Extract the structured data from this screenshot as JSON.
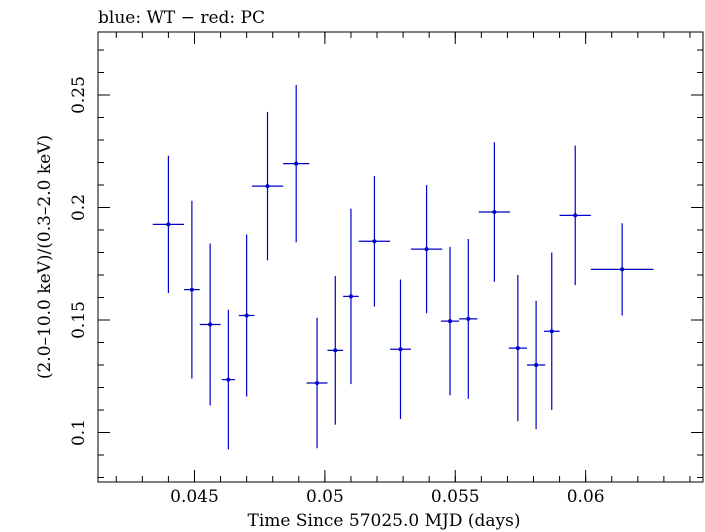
{
  "chart_data": {
    "type": "scatter",
    "title": "blue: WT − red: PC",
    "xlabel": "Time Since 57025.0 MJD (days)",
    "ylabel": "(2.0–10.0 keV)/(0.3–2.0 keV)",
    "xlim": [
      0.0413,
      0.0645
    ],
    "ylim": [
      0.078,
      0.278
    ],
    "x_ticks": [
      0.045,
      0.05,
      0.055,
      0.06
    ],
    "x_tick_labels": [
      "0.045",
      "0.05",
      "0.055",
      "0.06"
    ],
    "y_ticks": [
      0.1,
      0.15,
      0.2,
      0.25
    ],
    "y_tick_labels": [
      "0.1",
      "0.15",
      "0.2",
      "0.25"
    ],
    "grid": false,
    "colors": {
      "WT": "#0000cc",
      "axes": "#000000"
    },
    "series": [
      {
        "name": "WT",
        "points": [
          {
            "x": 0.044,
            "xerr": 0.0006,
            "y": 0.1925,
            "yerr_lo": 0.0305,
            "yerr_hi": 0.0305
          },
          {
            "x": 0.0449,
            "xerr": 0.0003,
            "y": 0.1635,
            "yerr_lo": 0.0395,
            "yerr_hi": 0.0395
          },
          {
            "x": 0.0456,
            "xerr": 0.0004,
            "y": 0.148,
            "yerr_lo": 0.036,
            "yerr_hi": 0.036
          },
          {
            "x": 0.0463,
            "xerr": 0.00025,
            "y": 0.1235,
            "yerr_lo": 0.031,
            "yerr_hi": 0.031
          },
          {
            "x": 0.047,
            "xerr": 0.0003,
            "y": 0.152,
            "yerr_lo": 0.036,
            "yerr_hi": 0.036
          },
          {
            "x": 0.0478,
            "xerr": 0.0006,
            "y": 0.2095,
            "yerr_lo": 0.033,
            "yerr_hi": 0.033
          },
          {
            "x": 0.0489,
            "xerr": 0.0005,
            "y": 0.2195,
            "yerr_lo": 0.035,
            "yerr_hi": 0.035
          },
          {
            "x": 0.0497,
            "xerr": 0.0004,
            "y": 0.122,
            "yerr_lo": 0.029,
            "yerr_hi": 0.029
          },
          {
            "x": 0.0504,
            "xerr": 0.0003,
            "y": 0.1365,
            "yerr_lo": 0.033,
            "yerr_hi": 0.033
          },
          {
            "x": 0.051,
            "xerr": 0.0003,
            "y": 0.1605,
            "yerr_lo": 0.039,
            "yerr_hi": 0.039
          },
          {
            "x": 0.0519,
            "xerr": 0.0006,
            "y": 0.185,
            "yerr_lo": 0.029,
            "yerr_hi": 0.029
          },
          {
            "x": 0.0529,
            "xerr": 0.0004,
            "y": 0.137,
            "yerr_lo": 0.031,
            "yerr_hi": 0.031
          },
          {
            "x": 0.0539,
            "xerr": 0.0006,
            "y": 0.1815,
            "yerr_lo": 0.0285,
            "yerr_hi": 0.0285
          },
          {
            "x": 0.0548,
            "xerr": 0.00035,
            "y": 0.1495,
            "yerr_lo": 0.033,
            "yerr_hi": 0.033
          },
          {
            "x": 0.0555,
            "xerr": 0.00035,
            "y": 0.1505,
            "yerr_lo": 0.0355,
            "yerr_hi": 0.0355
          },
          {
            "x": 0.0565,
            "xerr": 0.0006,
            "y": 0.198,
            "yerr_lo": 0.031,
            "yerr_hi": 0.031
          },
          {
            "x": 0.0574,
            "xerr": 0.00035,
            "y": 0.1375,
            "yerr_lo": 0.0325,
            "yerr_hi": 0.0325
          },
          {
            "x": 0.0581,
            "xerr": 0.00035,
            "y": 0.13,
            "yerr_lo": 0.0285,
            "yerr_hi": 0.0285
          },
          {
            "x": 0.0587,
            "xerr": 0.0003,
            "y": 0.145,
            "yerr_lo": 0.035,
            "yerr_hi": 0.035
          },
          {
            "x": 0.0596,
            "xerr": 0.0006,
            "y": 0.1965,
            "yerr_lo": 0.031,
            "yerr_hi": 0.031
          },
          {
            "x": 0.0614,
            "xerr": 0.0012,
            "y": 0.1725,
            "yerr_lo": 0.0205,
            "yerr_hi": 0.0205
          }
        ]
      }
    ]
  }
}
